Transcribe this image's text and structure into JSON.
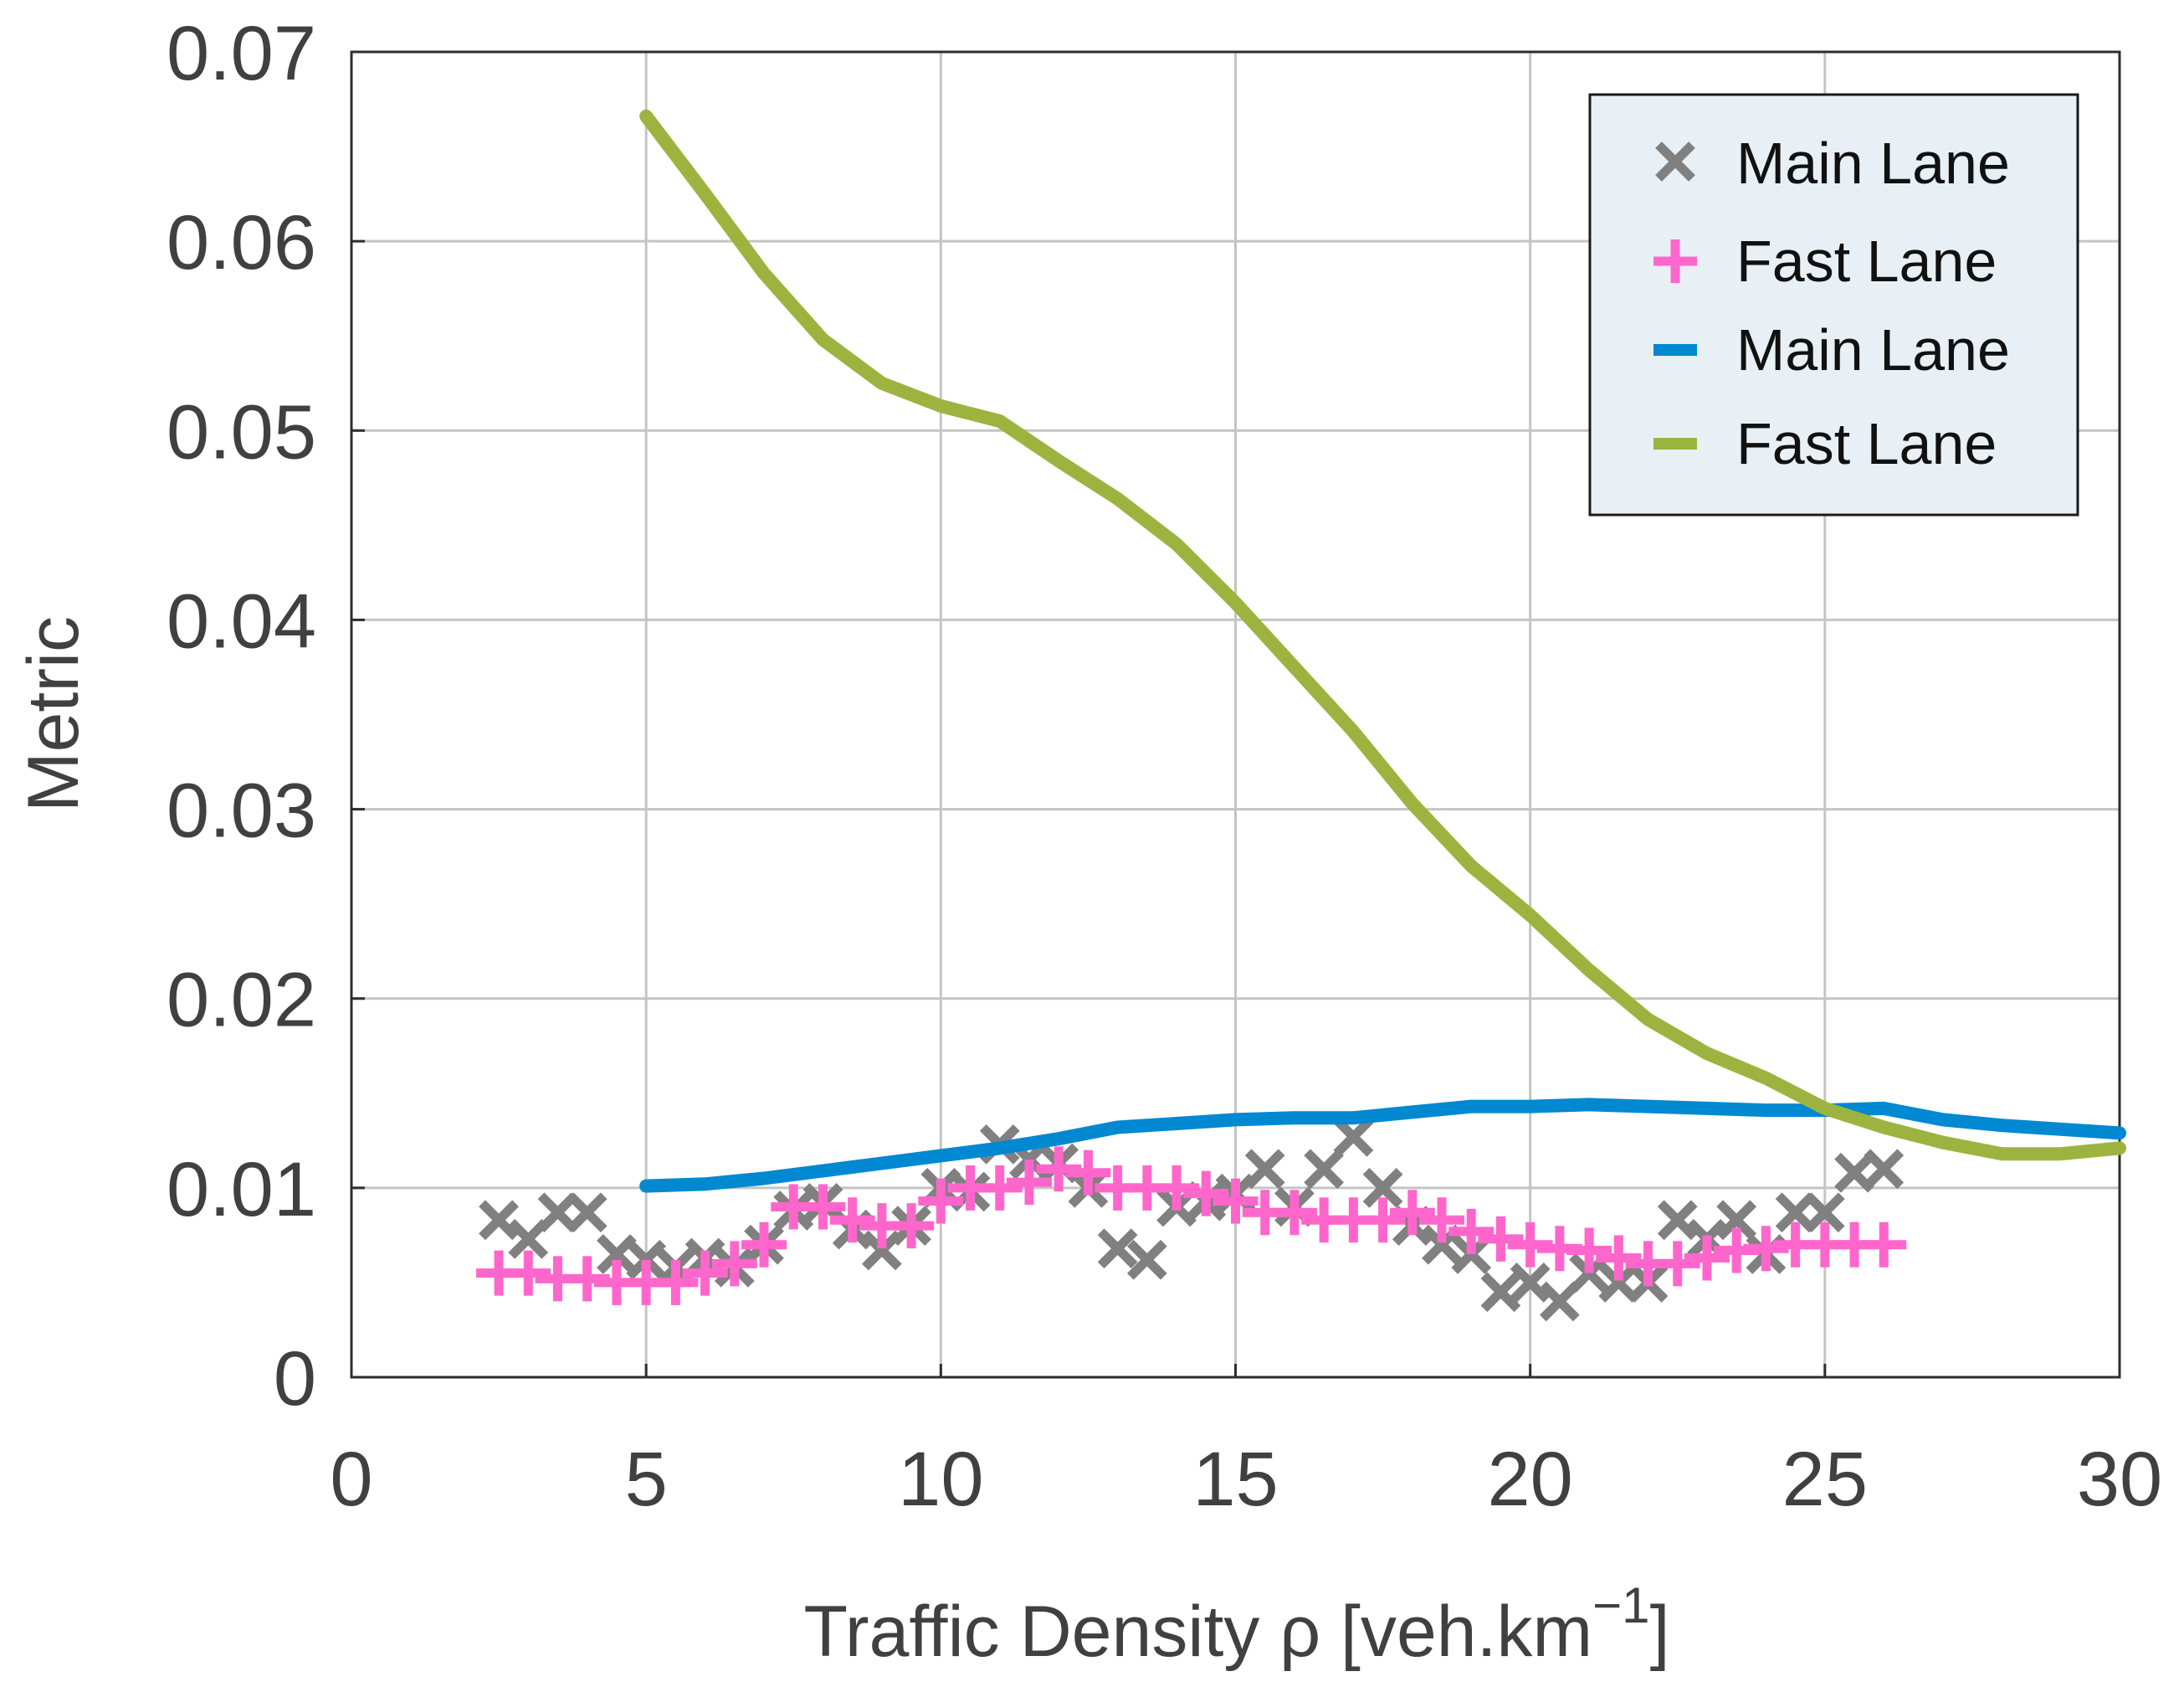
{
  "chart_data": {
    "type": "line",
    "title": "",
    "xlabel": "Traffic Density ρ  [veh.km",
    "xlabel_sup": "−1",
    "xlabel_close": "]",
    "ylabel": "Metric",
    "xlim": [
      0,
      30
    ],
    "ylim": [
      0,
      0.07
    ],
    "xticks": [
      0,
      5,
      10,
      15,
      20,
      25,
      30
    ],
    "xtick_labels": [
      "0",
      "5",
      "10",
      "15",
      "20",
      "25",
      "30"
    ],
    "yticks": [
      0,
      0.01,
      0.02,
      0.03,
      0.04,
      0.05,
      0.06,
      0.07
    ],
    "ytick_labels": [
      "0",
      "0.01",
      "0.02",
      "0.03",
      "0.04",
      "0.05",
      "0.06",
      "0.07"
    ],
    "grid": true,
    "legend_position": "top-right",
    "series": [
      {
        "name": "Main Lane",
        "kind": "scatter",
        "marker": "x",
        "color": "#808080",
        "x": [
          2.5,
          3.0,
          3.5,
          4.0,
          4.5,
          5.0,
          5.5,
          6.0,
          6.5,
          7.0,
          7.5,
          8.0,
          8.5,
          9.0,
          9.5,
          10.0,
          10.5,
          11.0,
          11.5,
          12.0,
          12.5,
          13.0,
          13.5,
          14.0,
          14.5,
          15.0,
          15.5,
          16.0,
          16.5,
          17.0,
          17.5,
          18.0,
          18.5,
          19.0,
          19.5,
          20.0,
          20.5,
          21.0,
          21.5,
          22.0,
          22.5,
          23.0,
          23.5,
          24.0,
          24.5,
          25.0,
          25.5,
          26.0
        ],
        "y": [
          0.0083,
          0.0073,
          0.0087,
          0.0087,
          0.0065,
          0.0062,
          0.0058,
          0.0063,
          0.0058,
          0.007,
          0.0088,
          0.0092,
          0.0078,
          0.0067,
          0.008,
          0.01,
          0.0098,
          0.0123,
          0.0115,
          0.0113,
          0.01,
          0.0068,
          0.0062,
          0.009,
          0.0093,
          0.0097,
          0.011,
          0.009,
          0.011,
          0.0127,
          0.01,
          0.008,
          0.007,
          0.0065,
          0.0045,
          0.005,
          0.004,
          0.0055,
          0.005,
          0.005,
          0.0083,
          0.0073,
          0.0083,
          0.0065,
          0.0087,
          0.0087,
          0.0108,
          0.011
        ]
      },
      {
        "name": "Fast Lane",
        "kind": "scatter",
        "marker": "+",
        "color": "#ff66cc",
        "x": [
          2.5,
          3.0,
          3.5,
          4.0,
          4.5,
          5.0,
          5.5,
          6.0,
          6.5,
          7.0,
          7.5,
          8.0,
          8.5,
          9.0,
          9.5,
          10.0,
          10.5,
          11.0,
          11.5,
          12.0,
          12.5,
          13.0,
          13.5,
          14.0,
          14.5,
          15.0,
          15.5,
          16.0,
          16.5,
          17.0,
          17.5,
          18.0,
          18.5,
          19.0,
          19.5,
          20.0,
          20.5,
          21.0,
          21.5,
          22.0,
          22.5,
          23.0,
          23.5,
          24.0,
          24.5,
          25.0,
          25.5,
          26.0
        ],
        "y": [
          0.0055,
          0.0055,
          0.0052,
          0.0052,
          0.005,
          0.005,
          0.005,
          0.0055,
          0.006,
          0.007,
          0.009,
          0.009,
          0.0083,
          0.008,
          0.008,
          0.0093,
          0.01,
          0.01,
          0.0103,
          0.011,
          0.0108,
          0.01,
          0.01,
          0.01,
          0.0097,
          0.0093,
          0.0087,
          0.0087,
          0.0083,
          0.0083,
          0.0083,
          0.0087,
          0.0083,
          0.0077,
          0.0073,
          0.007,
          0.0068,
          0.0067,
          0.0063,
          0.006,
          0.006,
          0.0063,
          0.0067,
          0.0068,
          0.007,
          0.007,
          0.007,
          0.007
        ]
      },
      {
        "name": "Main Lane",
        "kind": "line",
        "color": "#0088d1",
        "x": [
          5,
          6,
          7,
          8,
          9,
          10,
          11,
          12,
          13,
          14,
          15,
          16,
          17,
          18,
          19,
          20,
          21,
          22,
          23,
          24,
          25,
          26,
          27,
          28,
          29,
          30
        ],
        "y": [
          0.0101,
          0.0102,
          0.0105,
          0.0109,
          0.0113,
          0.0117,
          0.0121,
          0.0126,
          0.0132,
          0.0134,
          0.0136,
          0.0137,
          0.0137,
          0.014,
          0.0143,
          0.0143,
          0.0144,
          0.0143,
          0.0142,
          0.0141,
          0.0141,
          0.0142,
          0.0136,
          0.0133,
          0.0131,
          0.0129
        ]
      },
      {
        "name": "Fast Lane",
        "kind": "line",
        "color": "#9cb43f",
        "x": [
          5,
          6,
          7,
          8,
          9,
          10,
          11,
          12,
          13,
          14,
          15,
          16,
          17,
          18,
          19,
          20,
          21,
          22,
          23,
          24,
          25,
          26,
          27,
          28,
          29,
          30
        ],
        "y": [
          0.0666,
          0.0625,
          0.0583,
          0.0548,
          0.0525,
          0.0513,
          0.0505,
          0.0484,
          0.0464,
          0.044,
          0.0409,
          0.0375,
          0.0341,
          0.0303,
          0.027,
          0.0244,
          0.0215,
          0.0189,
          0.0171,
          0.0158,
          0.0142,
          0.0132,
          0.0124,
          0.0118,
          0.0118,
          0.0121
        ]
      }
    ]
  }
}
